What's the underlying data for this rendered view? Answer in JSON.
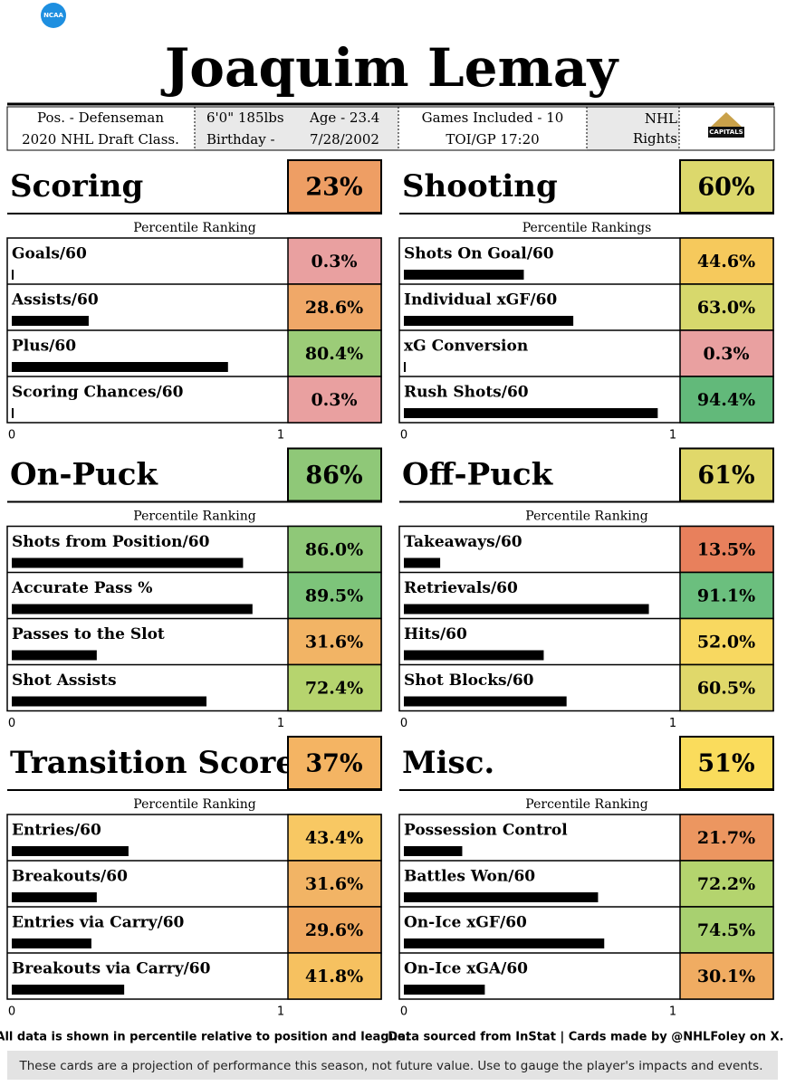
{
  "header": {
    "logo": "NCAA",
    "name": "Joaquim Lemay",
    "position": "Pos. - Defenseman",
    "draft": "2020 NHL Draft Class.",
    "size": "6'0\" 185lbs",
    "age": "Age - 23.4",
    "birthday_label": "Birthday -",
    "birthday": "7/28/2002",
    "games": "Games Included - 10",
    "toi": "TOI/GP 17:20",
    "rights": "NHL Rights",
    "team_logo": "CAPITALS"
  },
  "chart_data": [
    {
      "type": "bar",
      "title": "Scoring",
      "score": "23%",
      "score_color": "#ee9e64",
      "subtitle": "Percentile Ranking",
      "categories": [
        "Goals/60",
        "Assists/60",
        "Plus/60",
        "Scoring Chances/60"
      ],
      "values": [
        0.003,
        0.286,
        0.804,
        0.003
      ],
      "value_labels": [
        "0.3%",
        "28.6%",
        "80.4%",
        "0.3%"
      ],
      "label_colors": [
        "#e9a0a0",
        "#f0a868",
        "#9ccc78",
        "#e9a0a0"
      ],
      "color": "#000000",
      "xlim": [
        0,
        1
      ],
      "xticks": [
        0,
        1
      ]
    },
    {
      "type": "bar",
      "title": "Shooting",
      "score": "60%",
      "score_color": "#dcd86c",
      "subtitle": "Percentile Rankings",
      "categories": [
        "Shots On Goal/60",
        "Individual xGF/60",
        "xG Conversion",
        "Rush Shots/60"
      ],
      "values": [
        0.446,
        0.63,
        0.003,
        0.944
      ],
      "value_labels": [
        "44.6%",
        "63.0%",
        "0.3%",
        "94.4%"
      ],
      "label_colors": [
        "#f6c95c",
        "#d7d86c",
        "#e9a0a0",
        "#62b97a"
      ],
      "color": "#000000",
      "xlim": [
        0,
        1
      ],
      "xticks": [
        0,
        1
      ]
    },
    {
      "type": "bar",
      "title": "On-Puck",
      "score": "86%",
      "score_color": "#8fc878",
      "subtitle": "Percentile Ranking",
      "categories": [
        "Shots from Position/60",
        "Accurate Pass %",
        "Passes to the Slot",
        "Shot Assists"
      ],
      "values": [
        0.86,
        0.895,
        0.316,
        0.724
      ],
      "value_labels": [
        "86.0%",
        "89.5%",
        "31.6%",
        "72.4%"
      ],
      "label_colors": [
        "#8fc878",
        "#7dc47a",
        "#f2b465",
        "#b6d46e"
      ],
      "color": "#000000",
      "xlim": [
        0,
        1
      ],
      "xticks": [
        0,
        1
      ]
    },
    {
      "type": "bar",
      "title": "Off-Puck",
      "score": "61%",
      "score_color": "#e0d86a",
      "subtitle": "Percentile Ranking",
      "categories": [
        "Takeaways/60",
        "Retrievals/60",
        "Hits/60",
        "Shot Blocks/60"
      ],
      "values": [
        0.135,
        0.911,
        0.52,
        0.605
      ],
      "value_labels": [
        "13.5%",
        "91.1%",
        "52.0%",
        "60.5%"
      ],
      "label_colors": [
        "#e8805c",
        "#6bbf7e",
        "#f8d860",
        "#e0d86a"
      ],
      "color": "#000000",
      "xlim": [
        0,
        1
      ],
      "xticks": [
        0,
        1
      ]
    },
    {
      "type": "bar",
      "title": "Transition Score",
      "score": "37%",
      "score_color": "#f4b463",
      "subtitle": "Percentile Ranking",
      "categories": [
        "Entries/60",
        "Breakouts/60",
        "Entries via Carry/60",
        "Breakouts via Carry/60"
      ],
      "values": [
        0.434,
        0.316,
        0.296,
        0.418
      ],
      "value_labels": [
        "43.4%",
        "31.6%",
        "29.6%",
        "41.8%"
      ],
      "label_colors": [
        "#f8c863",
        "#f2b465",
        "#f0a860",
        "#f6c160"
      ],
      "color": "#000000",
      "xlim": [
        0,
        1
      ],
      "xticks": [
        0,
        1
      ]
    },
    {
      "type": "bar",
      "title": "Misc.",
      "score": "51%",
      "score_color": "#fadc5c",
      "subtitle": "Percentile Ranking",
      "categories": [
        "Possession Control",
        "Battles Won/60",
        "On-Ice xGF/60",
        "On-Ice xGA/60"
      ],
      "values": [
        0.217,
        0.722,
        0.745,
        0.301
      ],
      "value_labels": [
        "21.7%",
        "72.2%",
        "74.5%",
        "30.1%"
      ],
      "label_colors": [
        "#ec9660",
        "#b4d46e",
        "#a8d070",
        "#f0ac62"
      ],
      "color": "#000000",
      "xlim": [
        0,
        1
      ],
      "xticks": [
        0,
        1
      ]
    }
  ],
  "footer": {
    "left": "All data is shown in percentile relative to position and league.",
    "right": "Data sourced from InStat | Cards made by @NHLFoley on X.",
    "note": "These cards are a projection of performance this season, not future value. Use to gauge the player's impacts and events."
  }
}
